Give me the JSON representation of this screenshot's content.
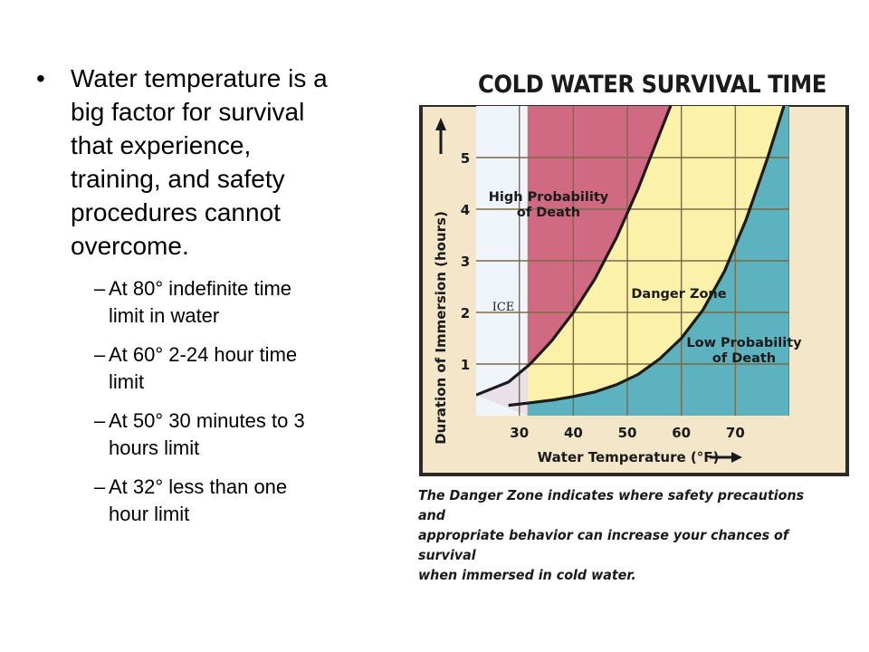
{
  "bullets": [
    {
      "text": "Water temperature is a\nbig factor for survival\nthat experience,\ntraining, and safety\nprocedures cannot\novercome.",
      "sub": [
        {
          "text": "At 80° indefinite time\nlimit in water"
        },
        {
          "text": "At 60° 2-24 hour time\nlimit"
        },
        {
          "text": "At 50° 30 minutes to 3\nhours limit"
        },
        {
          "text": "At 32° less than one\nhour limit"
        }
      ]
    }
  ],
  "chart_data": {
    "type": "area",
    "title": "COLD WATER SURVIVAL TIME",
    "xlabel": "Water Temperature (°F)",
    "ylabel": "Duration of Immersion (hours)",
    "xticks": [
      30,
      40,
      50,
      60,
      70
    ],
    "yticks": [
      1,
      2,
      3,
      4,
      5
    ],
    "xlim": [
      22,
      80
    ],
    "ylim": [
      0,
      6
    ],
    "grid": true,
    "region_labels": {
      "ice": "ICE",
      "high": "High Probability\nof Death",
      "danger": "Danger Zone",
      "low": "Low Probability\nof Death"
    },
    "series": [
      {
        "name": "High Probability of Death boundary",
        "x": [
          22,
          28,
          32,
          36,
          40,
          44,
          48,
          52,
          55,
          58,
          61
        ],
        "y": [
          0.4,
          0.65,
          1.0,
          1.45,
          2.0,
          2.65,
          3.45,
          4.4,
          5.2,
          6.0,
          6.8
        ]
      },
      {
        "name": "Low Probability of Death boundary",
        "x": [
          28,
          32,
          36,
          40,
          44,
          48,
          52,
          56,
          60,
          64,
          68,
          72,
          76,
          79
        ],
        "y": [
          0.2,
          0.25,
          0.3,
          0.37,
          0.46,
          0.6,
          0.8,
          1.1,
          1.5,
          2.05,
          2.8,
          3.8,
          5.0,
          6.0
        ]
      }
    ],
    "colors": {
      "ice": "#eef5fa",
      "high": "#d06a82",
      "danger": "#fbf1a8",
      "low": "#5cb3bf",
      "grid": "#7a6a45",
      "frame": "#2d2926",
      "panel": "#f3e6c9"
    }
  },
  "caption": "The Danger Zone indicates where safety precautions and\nappropriate behavior can increase your chances of survival\nwhen immersed in cold water."
}
